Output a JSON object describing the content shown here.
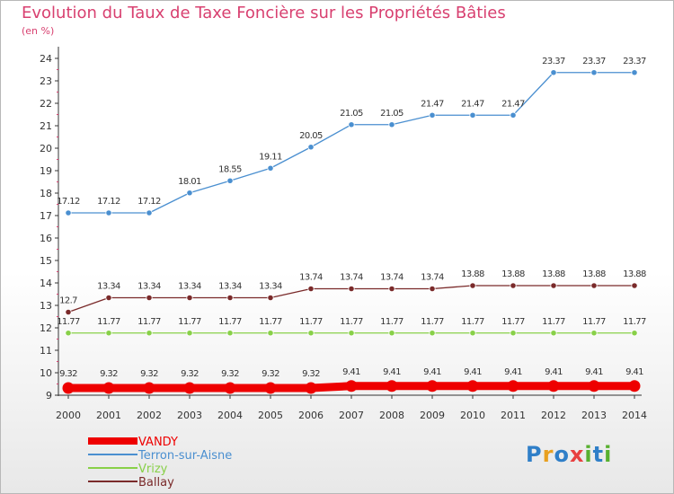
{
  "title": "Evolution du Taux de Taxe Foncière sur les Propriétés Bâties",
  "unit_label": "(en %)",
  "logo": "Proxiti",
  "chart_data": {
    "type": "line",
    "title": "Evolution du Taux de Taxe Foncière sur les Propriétés Bâties",
    "ylabel": "(en %)",
    "xlabel": "",
    "ylim": [
      9,
      24
    ],
    "yticks": [
      "9",
      "10",
      "11",
      "12",
      "13",
      "14",
      "15",
      "16",
      "17",
      "18",
      "19",
      "20",
      "21",
      "22",
      "23",
      "24"
    ],
    "categories": [
      "2000",
      "2001",
      "2002",
      "2003",
      "2004",
      "2005",
      "2006",
      "2007",
      "2008",
      "2009",
      "2010",
      "2011",
      "2012",
      "2013",
      "2014"
    ],
    "legend_position": "bottom-left",
    "series": [
      {
        "name": "VANDY",
        "color": "#ee0000",
        "values": [
          9.32,
          9.32,
          9.32,
          9.32,
          9.32,
          9.32,
          9.32,
          9.41,
          9.41,
          9.41,
          9.41,
          9.41,
          9.41,
          9.41,
          9.41
        ],
        "labels": [
          "9.32",
          "9.32",
          "9.32",
          "9.32",
          "9.32",
          "9.32",
          "9.32",
          "9.41",
          "9.41",
          "9.41",
          "9.41",
          "9.41",
          "9.41",
          "9.41",
          "9.41"
        ]
      },
      {
        "name": "Terron-sur-Aisne",
        "color": "#4a8fd0",
        "values": [
          17.12,
          17.12,
          17.12,
          18.01,
          18.55,
          19.11,
          20.05,
          21.05,
          21.05,
          21.47,
          21.47,
          21.47,
          23.37,
          23.37,
          23.37
        ],
        "labels": [
          "17.12",
          "17.12",
          "17.12",
          "18.01",
          "18.55",
          "19.11",
          "20.05",
          "21.05",
          "21.05",
          "21.47",
          "21.47",
          "21.47",
          "23.37",
          "23.37",
          "23.37"
        ]
      },
      {
        "name": "Vrizy",
        "color": "#88d048",
        "values": [
          11.77,
          11.77,
          11.77,
          11.77,
          11.77,
          11.77,
          11.77,
          11.77,
          11.77,
          11.77,
          11.77,
          11.77,
          11.77,
          11.77,
          11.77
        ],
        "labels": [
          "11.77",
          "11.77",
          "11.77",
          "11.77",
          "11.77",
          "11.77",
          "11.77",
          "11.77",
          "11.77",
          "11.77",
          "11.77",
          "11.77",
          "11.77",
          "11.77",
          "11.77"
        ]
      },
      {
        "name": "Ballay",
        "color": "#7a2a2a",
        "values": [
          12.7,
          13.34,
          13.34,
          13.34,
          13.34,
          13.34,
          13.74,
          13.74,
          13.74,
          13.74,
          13.88,
          13.88,
          13.88,
          13.88,
          13.88
        ],
        "labels": [
          "12.7",
          "13.34",
          "13.34",
          "13.34",
          "13.34",
          "13.34",
          "13.74",
          "13.74",
          "13.74",
          "13.74",
          "13.88",
          "13.88",
          "13.88",
          "13.88",
          "13.88"
        ]
      }
    ]
  }
}
